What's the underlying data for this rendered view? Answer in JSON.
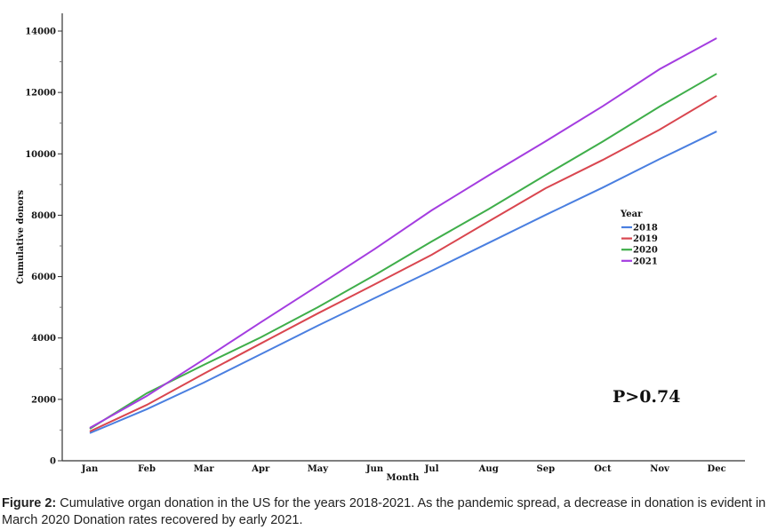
{
  "chart_data": {
    "type": "line",
    "xlabel": "Month",
    "ylabel": "Cumulative donors",
    "categories": [
      "Jan",
      "Feb",
      "Mar",
      "Apr",
      "May",
      "Jun",
      "Jul",
      "Aug",
      "Sep",
      "Oct",
      "Nov",
      "Dec"
    ],
    "yticks": [
      0,
      2000,
      4000,
      6000,
      8000,
      10000,
      12000,
      14000
    ],
    "ylim": [
      0,
      14000
    ],
    "grid": false,
    "legend": {
      "title": "Year",
      "placement": "right"
    },
    "annotation": "P>0.74",
    "series": [
      {
        "name": "2018",
        "color": "#4a7fe0",
        "values": [
          900,
          1680,
          2545,
          3470,
          4400,
          5300,
          6190,
          7100,
          8010,
          8900,
          9830,
          10730
        ]
      },
      {
        "name": "2019",
        "color": "#d9464f",
        "values": [
          955,
          1820,
          2835,
          3820,
          4800,
          5750,
          6710,
          7800,
          8880,
          9800,
          10790,
          11890
        ]
      },
      {
        "name": "2020",
        "color": "#3fae4a",
        "values": [
          1040,
          2200,
          3125,
          4020,
          5000,
          6050,
          7145,
          8200,
          9310,
          10400,
          11540,
          12610
        ]
      },
      {
        "name": "2021",
        "color": "#a43de0",
        "values": [
          1070,
          2110,
          3300,
          4510,
          5700,
          6900,
          8160,
          9300,
          10410,
          11550,
          12760,
          13770
        ]
      }
    ]
  },
  "caption": {
    "label": "Figure 2:",
    "text": " Cumulative organ donation in the US for the years 2018-2021. As the pandemic spread, a decrease in donation is evident in March 2020 Donation rates recovered by early 2021."
  }
}
